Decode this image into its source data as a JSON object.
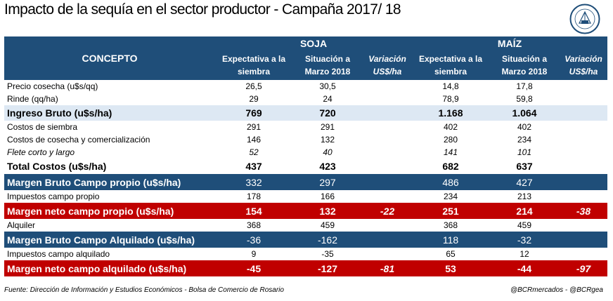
{
  "title": "Impacto de la sequía en el sector productor - Campaña 2017/ 18",
  "logo_text": "BOLSA DE COMERCIO DE ROSARIO",
  "header": {
    "concepto": "CONCEPTO",
    "soja": "SOJA",
    "maiz": "MAÍZ",
    "cols": [
      "Expectativa a la siembra",
      "Situación a Marzo 2018",
      "Variación US$/ha",
      "Expectativa a la siembra",
      "Situación a Marzo 2018",
      "Variación US$/ha"
    ]
  },
  "rows": [
    {
      "label": "Precio cosecha (u$s/qq)",
      "values": [
        "26,5",
        "30,5",
        "",
        "14,8",
        "17,8",
        ""
      ]
    },
    {
      "label": "Rinde (qq/ha)",
      "values": [
        "29",
        "24",
        "",
        "78,9",
        "59,8",
        ""
      ]
    },
    {
      "label": "Ingreso Bruto (u$s/ha)",
      "values": [
        "769",
        "720",
        "",
        "1.168",
        "1.064",
        ""
      ]
    },
    {
      "label": "Costos de siembra",
      "values": [
        "291",
        "291",
        "",
        "402",
        "402",
        ""
      ]
    },
    {
      "label": "Costos de cosecha y comercialización",
      "values": [
        "146",
        "132",
        "",
        "280",
        "234",
        ""
      ]
    },
    {
      "label": "Flete corto y largo",
      "values": [
        "52",
        "40",
        "",
        "141",
        "101",
        ""
      ]
    },
    {
      "label": "Total Costos (u$s/ha)",
      "values": [
        "437",
        "423",
        "",
        "682",
        "637",
        ""
      ]
    },
    {
      "label": "Margen Bruto Campo propio (u$s/ha)",
      "values": [
        "332",
        "297",
        "",
        "486",
        "427",
        ""
      ]
    },
    {
      "label": "Impuestos campo propio",
      "values": [
        "178",
        "166",
        "",
        "234",
        "213",
        ""
      ]
    },
    {
      "label": "Margen neto campo propio (u$s/ha)",
      "values": [
        "154",
        "132",
        "-22",
        "251",
        "214",
        "-38"
      ]
    },
    {
      "label": "Alquiler",
      "values": [
        "368",
        "459",
        "",
        "368",
        "459",
        ""
      ]
    },
    {
      "label": "Margen Bruto Campo Alquilado (u$s/ha)",
      "values": [
        "-36",
        "-162",
        "",
        "118",
        "-32",
        ""
      ]
    },
    {
      "label": "Impuestos campo alquilado",
      "values": [
        "9",
        "-35",
        "",
        "65",
        "12",
        ""
      ]
    },
    {
      "label": "Margen neto campo alquilado (u$s/ha)",
      "values": [
        "-45",
        "-127",
        "-81",
        "53",
        "-44",
        "-97"
      ]
    }
  ],
  "footer": {
    "source": "Fuente: Dirección de Información y Estudios Económicos - Bolsa de Comercio de Rosario",
    "handles": "@BCRmercados - @BCRgea"
  },
  "colors": {
    "header_blue": "#1f4e79",
    "red": "#c00000",
    "light_blue": "#dde8f3"
  }
}
